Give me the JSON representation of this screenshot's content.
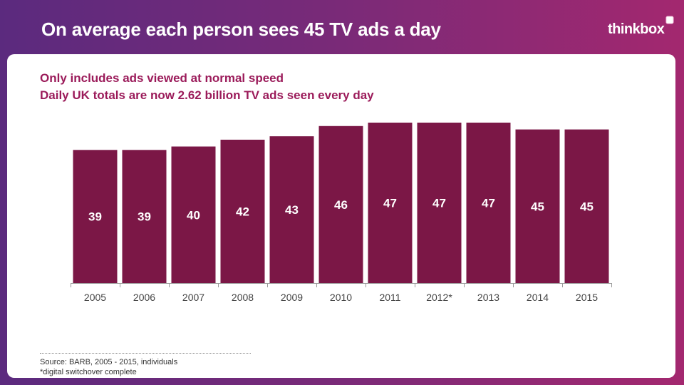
{
  "header": {
    "title": "On average each person sees 45 TV ads a day",
    "logo_text": "thinkbox"
  },
  "subtitles": [
    "Only includes ads viewed at normal speed",
    "Daily UK totals are now 2.62 billion TV ads seen every day"
  ],
  "footer": {
    "source": "Source: BARB, 2005 - 2015, individuals",
    "note": "*digital switchover complete"
  },
  "colors": {
    "bar": "#7b1746",
    "subtitle": "#9b1b5a",
    "background_left": "#5b2a7e",
    "background_right": "#a3286f"
  },
  "chart_data": {
    "type": "bar",
    "categories": [
      "2005",
      "2006",
      "2007",
      "2008",
      "2009",
      "2010",
      "2011",
      "2012*",
      "2013",
      "2014",
      "2015"
    ],
    "values": [
      39,
      39,
      40,
      42,
      43,
      46,
      47,
      47,
      47,
      45,
      45
    ],
    "title": "",
    "xlabel": "",
    "ylabel": "",
    "ylim": [
      0,
      47
    ],
    "grid": false,
    "legend": "none",
    "data_labels": "inside"
  }
}
